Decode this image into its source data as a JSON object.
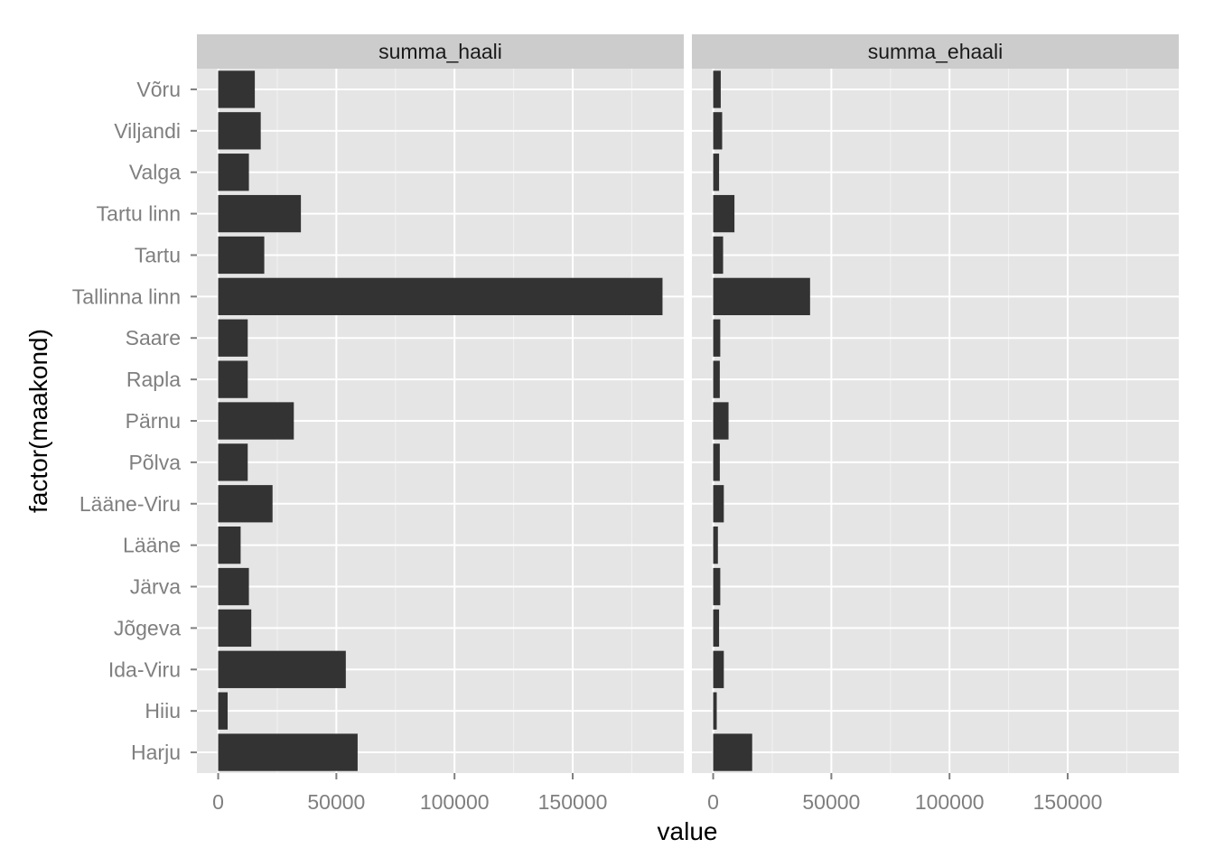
{
  "chart_data": {
    "type": "bar",
    "orientation": "horizontal",
    "facets": [
      "summa_haali",
      "summa_ehaali"
    ],
    "categories": [
      "Harju",
      "Hiiu",
      "Ida-Viru",
      "Jõgeva",
      "Järva",
      "Lääne",
      "Lääne-Viru",
      "Põlva",
      "Pärnu",
      "Rapla",
      "Saare",
      "Tallinna linn",
      "Tartu",
      "Tartu linn",
      "Valga",
      "Viljandi",
      "Võru"
    ],
    "series": [
      {
        "name": "summa_haali",
        "values": [
          59000,
          4000,
          54000,
          14000,
          13000,
          9500,
          23000,
          12500,
          32000,
          12500,
          12500,
          188000,
          19500,
          35000,
          13000,
          18000,
          15500
        ]
      },
      {
        "name": "summa_ehaali",
        "values": [
          16500,
          1500,
          4500,
          2500,
          3000,
          2000,
          4500,
          2800,
          6500,
          2800,
          3000,
          41000,
          4200,
          9000,
          2500,
          3800,
          3200
        ]
      }
    ],
    "xlim": [
      -9000,
      197000
    ],
    "xticks": [
      0,
      50000,
      100000,
      150000
    ],
    "xtick_labels": [
      "0",
      "50000",
      "100000",
      "150000"
    ],
    "xlabel": "value",
    "ylabel": "factor(maakond)",
    "colors": {
      "panel_bg": "#e5e5e5",
      "strip_bg": "#cccccc",
      "grid_major": "#ffffff",
      "grid_minor": "#f2f2f2",
      "bar": "#333333",
      "tick_text": "#7f7f7f"
    }
  }
}
